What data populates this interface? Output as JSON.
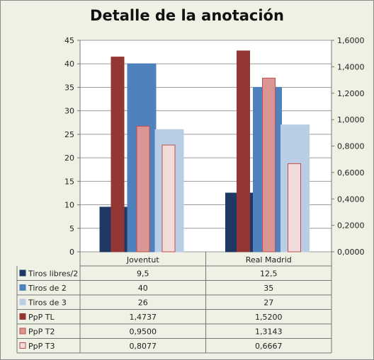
{
  "chart_data": {
    "type": "bar",
    "title": "Detalle de la anotación",
    "categories": [
      "Joventut",
      "Real Madrid"
    ],
    "left_axis": {
      "min": 0,
      "max": 45,
      "step": 5,
      "ticks": [
        "0",
        "5",
        "10",
        "15",
        "20",
        "25",
        "30",
        "35",
        "40",
        "45"
      ]
    },
    "right_axis": {
      "min": 0,
      "max": 1.6,
      "step": 0.2,
      "ticks": [
        "0,0000",
        "0,2000",
        "0,4000",
        "0,6000",
        "0,8000",
        "1,0000",
        "1,2000",
        "1,4000",
        "1,6000"
      ]
    },
    "series": [
      {
        "name": "Tiros libres/2",
        "axis": "left",
        "values": [
          9.5,
          12.5
        ],
        "labels": [
          "9,5",
          "12,5"
        ],
        "color": "#1f3864",
        "border": "#1f3864"
      },
      {
        "name": "Tiros de 2",
        "axis": "left",
        "values": [
          40,
          35
        ],
        "labels": [
          "40",
          "35"
        ],
        "color": "#4f81bd",
        "border": "#4f81bd"
      },
      {
        "name": "Tiros de 3",
        "axis": "left",
        "values": [
          26,
          27
        ],
        "labels": [
          "26",
          "27"
        ],
        "color": "#b9cde5",
        "border": "#b9cde5"
      },
      {
        "name": "PpP TL",
        "axis": "right",
        "values": [
          1.4737,
          1.52
        ],
        "labels": [
          "1,4737",
          "1,5200"
        ],
        "color": "#943634",
        "border": "#943634"
      },
      {
        "name": "PpP T2",
        "axis": "right",
        "values": [
          0.95,
          1.3143
        ],
        "labels": [
          "0,9500",
          "1,3143"
        ],
        "color": "#d99694",
        "border": "#c0504d"
      },
      {
        "name": "PpP T3",
        "axis": "right",
        "values": [
          0.8077,
          0.6667
        ],
        "labels": [
          "0,8077",
          "0,6667"
        ],
        "color": "#f2dcdb",
        "border": "#c0504d"
      }
    ],
    "legend_placement": "data-table"
  }
}
